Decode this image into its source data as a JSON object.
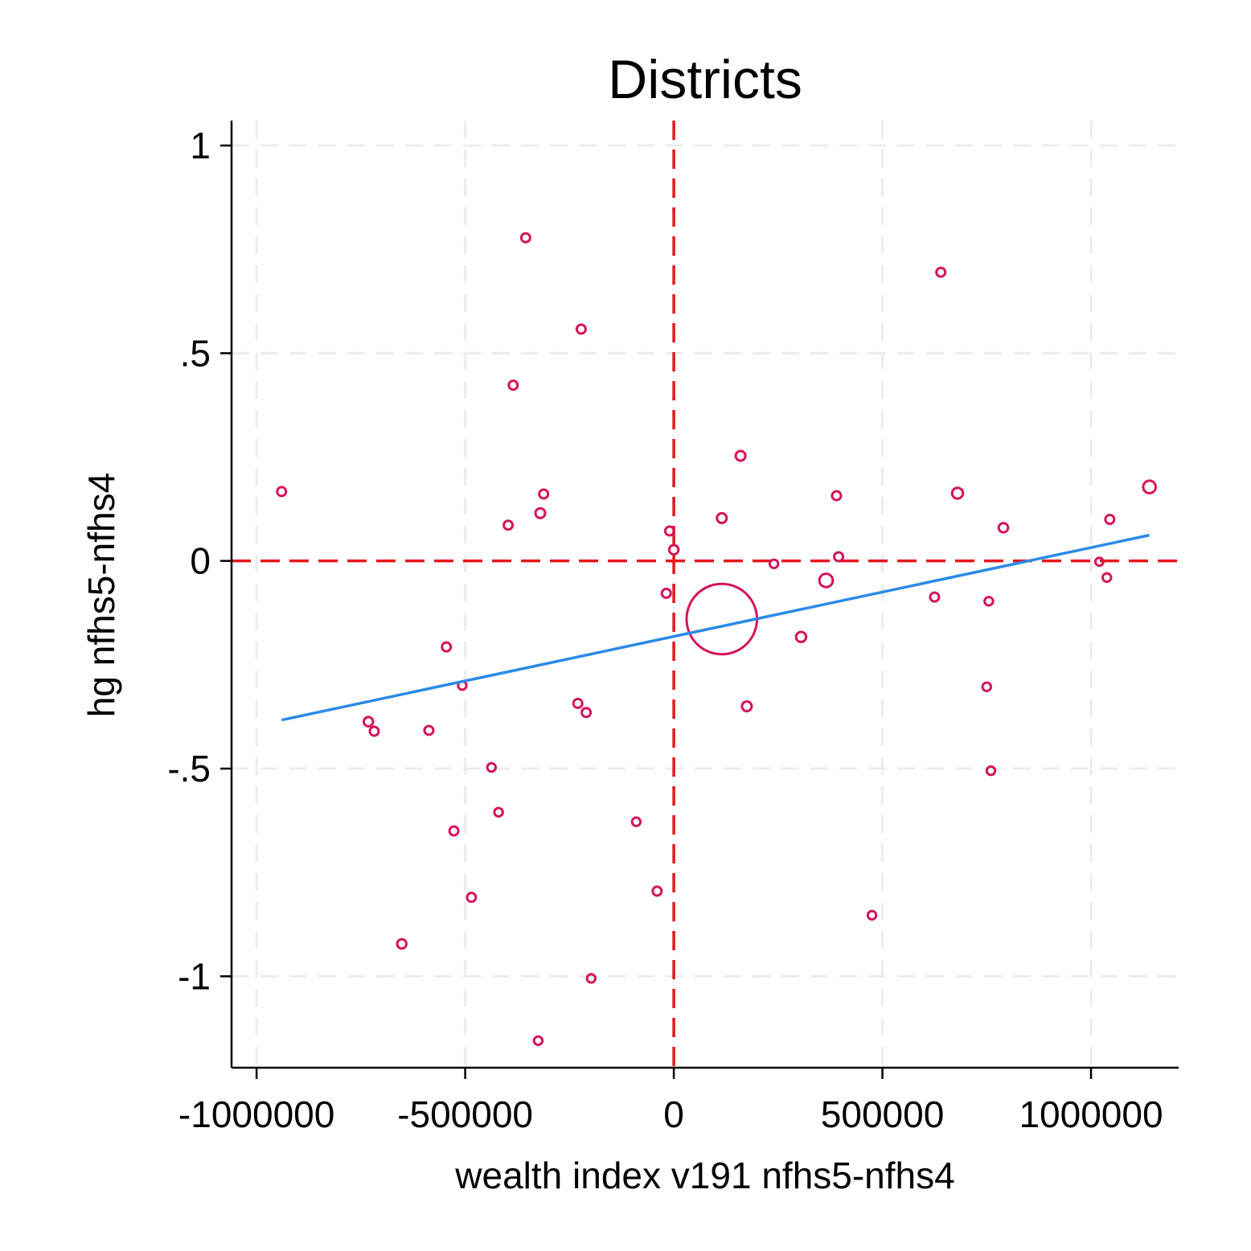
{
  "chart_data": {
    "type": "scatter",
    "title": "Districts",
    "xlabel": "wealth index v191 nfhs5-nfhs4",
    "ylabel": "hg nfhs5-nfhs4",
    "xlim": [
      -1060000,
      1210000
    ],
    "ylim": [
      -1.22,
      1.06
    ],
    "xticks": [
      -1000000,
      -500000,
      0,
      500000,
      1000000
    ],
    "xtick_labels": [
      "-1000000",
      "-500000",
      "0",
      "500000",
      "1000000"
    ],
    "yticks": [
      -1,
      -0.5,
      0,
      0.5,
      1
    ],
    "ytick_labels": [
      "-1",
      "-.5",
      "0",
      ".5",
      "1"
    ],
    "grid": true,
    "reference_lines": {
      "x": 0,
      "y": 0,
      "color": "#e8141c",
      "style": "dashed"
    },
    "marker_color": "#d4145a",
    "fit_line": {
      "color": "#2b8ae8",
      "x": [
        -940000,
        1140000
      ],
      "y": [
        -0.383,
        0.062
      ]
    },
    "series": [
      {
        "marker": "hollow-circle",
        "points": [
          {
            "x": -940000,
            "y": 0.167,
            "w": 1
          },
          {
            "x": -355000,
            "y": 0.778,
            "w": 1
          },
          {
            "x": -222000,
            "y": 0.558,
            "w": 1
          },
          {
            "x": -385000,
            "y": 0.423,
            "w": 1
          },
          {
            "x": -312000,
            "y": 0.161,
            "w": 1
          },
          {
            "x": -320000,
            "y": 0.115,
            "w": 1.2
          },
          {
            "x": -397000,
            "y": 0.086,
            "w": 1
          },
          {
            "x": -10000,
            "y": 0.072,
            "w": 1
          },
          {
            "x": 0,
            "y": 0.027,
            "w": 1.1
          },
          {
            "x": 160000,
            "y": 0.253,
            "w": 1.2
          },
          {
            "x": 115000,
            "y": 0.103,
            "w": 1.2
          },
          {
            "x": 390000,
            "y": 0.157,
            "w": 1
          },
          {
            "x": 680000,
            "y": 0.163,
            "w": 1.5
          },
          {
            "x": 1140000,
            "y": 0.178,
            "w": 2
          },
          {
            "x": 1045000,
            "y": 0.1,
            "w": 1
          },
          {
            "x": 790000,
            "y": 0.08,
            "w": 1.1
          },
          {
            "x": 640000,
            "y": 0.695,
            "w": 1
          },
          {
            "x": 395000,
            "y": 0.01,
            "w": 1
          },
          {
            "x": 240000,
            "y": -0.007,
            "w": 0.9
          },
          {
            "x": 365000,
            "y": -0.047,
            "w": 2.3
          },
          {
            "x": 115000,
            "y": -0.14,
            "w": 11
          },
          {
            "x": -18000,
            "y": -0.078,
            "w": 1
          },
          {
            "x": 305000,
            "y": -0.183,
            "w": 1.3
          },
          {
            "x": 175000,
            "y": -0.35,
            "w": 1.2
          },
          {
            "x": 625000,
            "y": -0.087,
            "w": 1
          },
          {
            "x": 755000,
            "y": -0.097,
            "w": 0.9
          },
          {
            "x": 1020000,
            "y": -0.002,
            "w": 0.8
          },
          {
            "x": 1038000,
            "y": -0.04,
            "w": 0.9
          },
          {
            "x": 750000,
            "y": -0.303,
            "w": 0.9
          },
          {
            "x": 760000,
            "y": -0.505,
            "w": 0.9
          },
          {
            "x": 475000,
            "y": -0.853,
            "w": 0.9
          },
          {
            "x": -545000,
            "y": -0.207,
            "w": 1
          },
          {
            "x": -507000,
            "y": -0.3,
            "w": 0.9
          },
          {
            "x": -230000,
            "y": -0.343,
            "w": 1
          },
          {
            "x": -210000,
            "y": -0.365,
            "w": 1
          },
          {
            "x": -732000,
            "y": -0.387,
            "w": 1.1
          },
          {
            "x": -718000,
            "y": -0.41,
            "w": 1
          },
          {
            "x": -587000,
            "y": -0.408,
            "w": 1
          },
          {
            "x": -437000,
            "y": -0.497,
            "w": 0.9
          },
          {
            "x": -420000,
            "y": -0.605,
            "w": 0.9
          },
          {
            "x": -527000,
            "y": -0.65,
            "w": 1
          },
          {
            "x": -90000,
            "y": -0.628,
            "w": 0.9
          },
          {
            "x": -40000,
            "y": -0.795,
            "w": 1
          },
          {
            "x": -485000,
            "y": -0.81,
            "w": 1
          },
          {
            "x": -652000,
            "y": -0.922,
            "w": 1.1
          },
          {
            "x": -198000,
            "y": -1.005,
            "w": 0.9
          },
          {
            "x": -325000,
            "y": -1.155,
            "w": 0.9
          }
        ]
      }
    ]
  }
}
